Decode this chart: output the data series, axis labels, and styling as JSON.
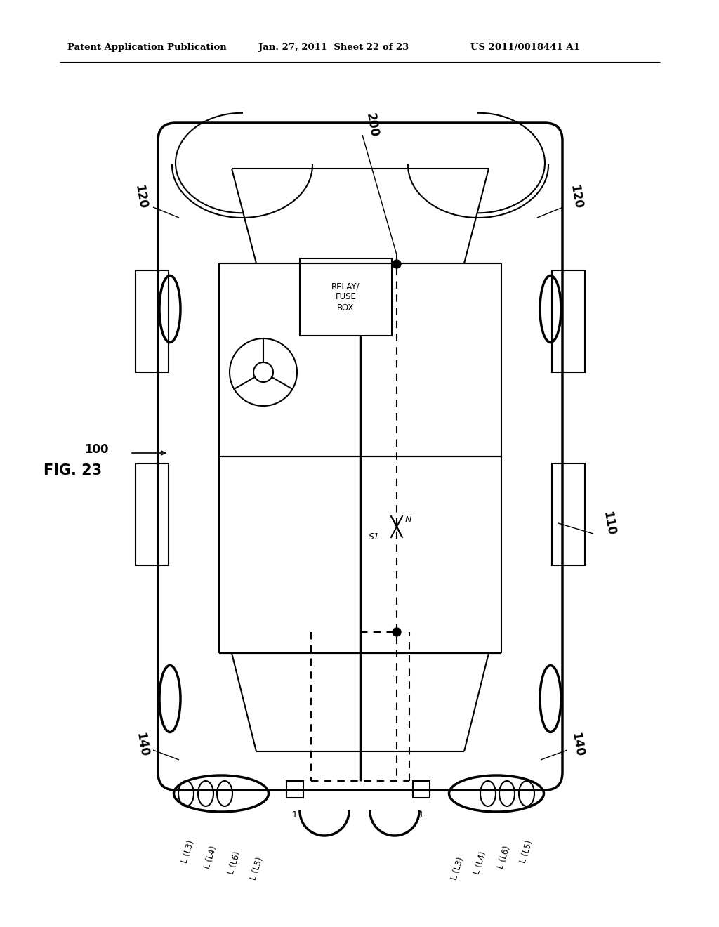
{
  "bg_color": "#ffffff",
  "header_text": "Patent Application Publication",
  "header_date": "Jan. 27, 2011  Sheet 22 of 23",
  "header_patent": "US 2011/0018441 A1",
  "fig_label": "FIG. 23",
  "label_200": "200",
  "label_120": "120",
  "label_100": "100",
  "label_110": "110",
  "label_140": "140",
  "relay_text": "RELAY/\nFUSE\nBOX",
  "label_S1": "S1",
  "label_N": "N",
  "label_1": "1",
  "bl_left": [
    "L (L3)",
    "L (L4)",
    "L (L6)",
    "L (L5)"
  ],
  "bl_right": [
    "L (L5)",
    "L (L6)",
    "L (L4)",
    "L (L3)"
  ],
  "lc": "#000000",
  "lw": 1.5,
  "tlw": 2.5
}
